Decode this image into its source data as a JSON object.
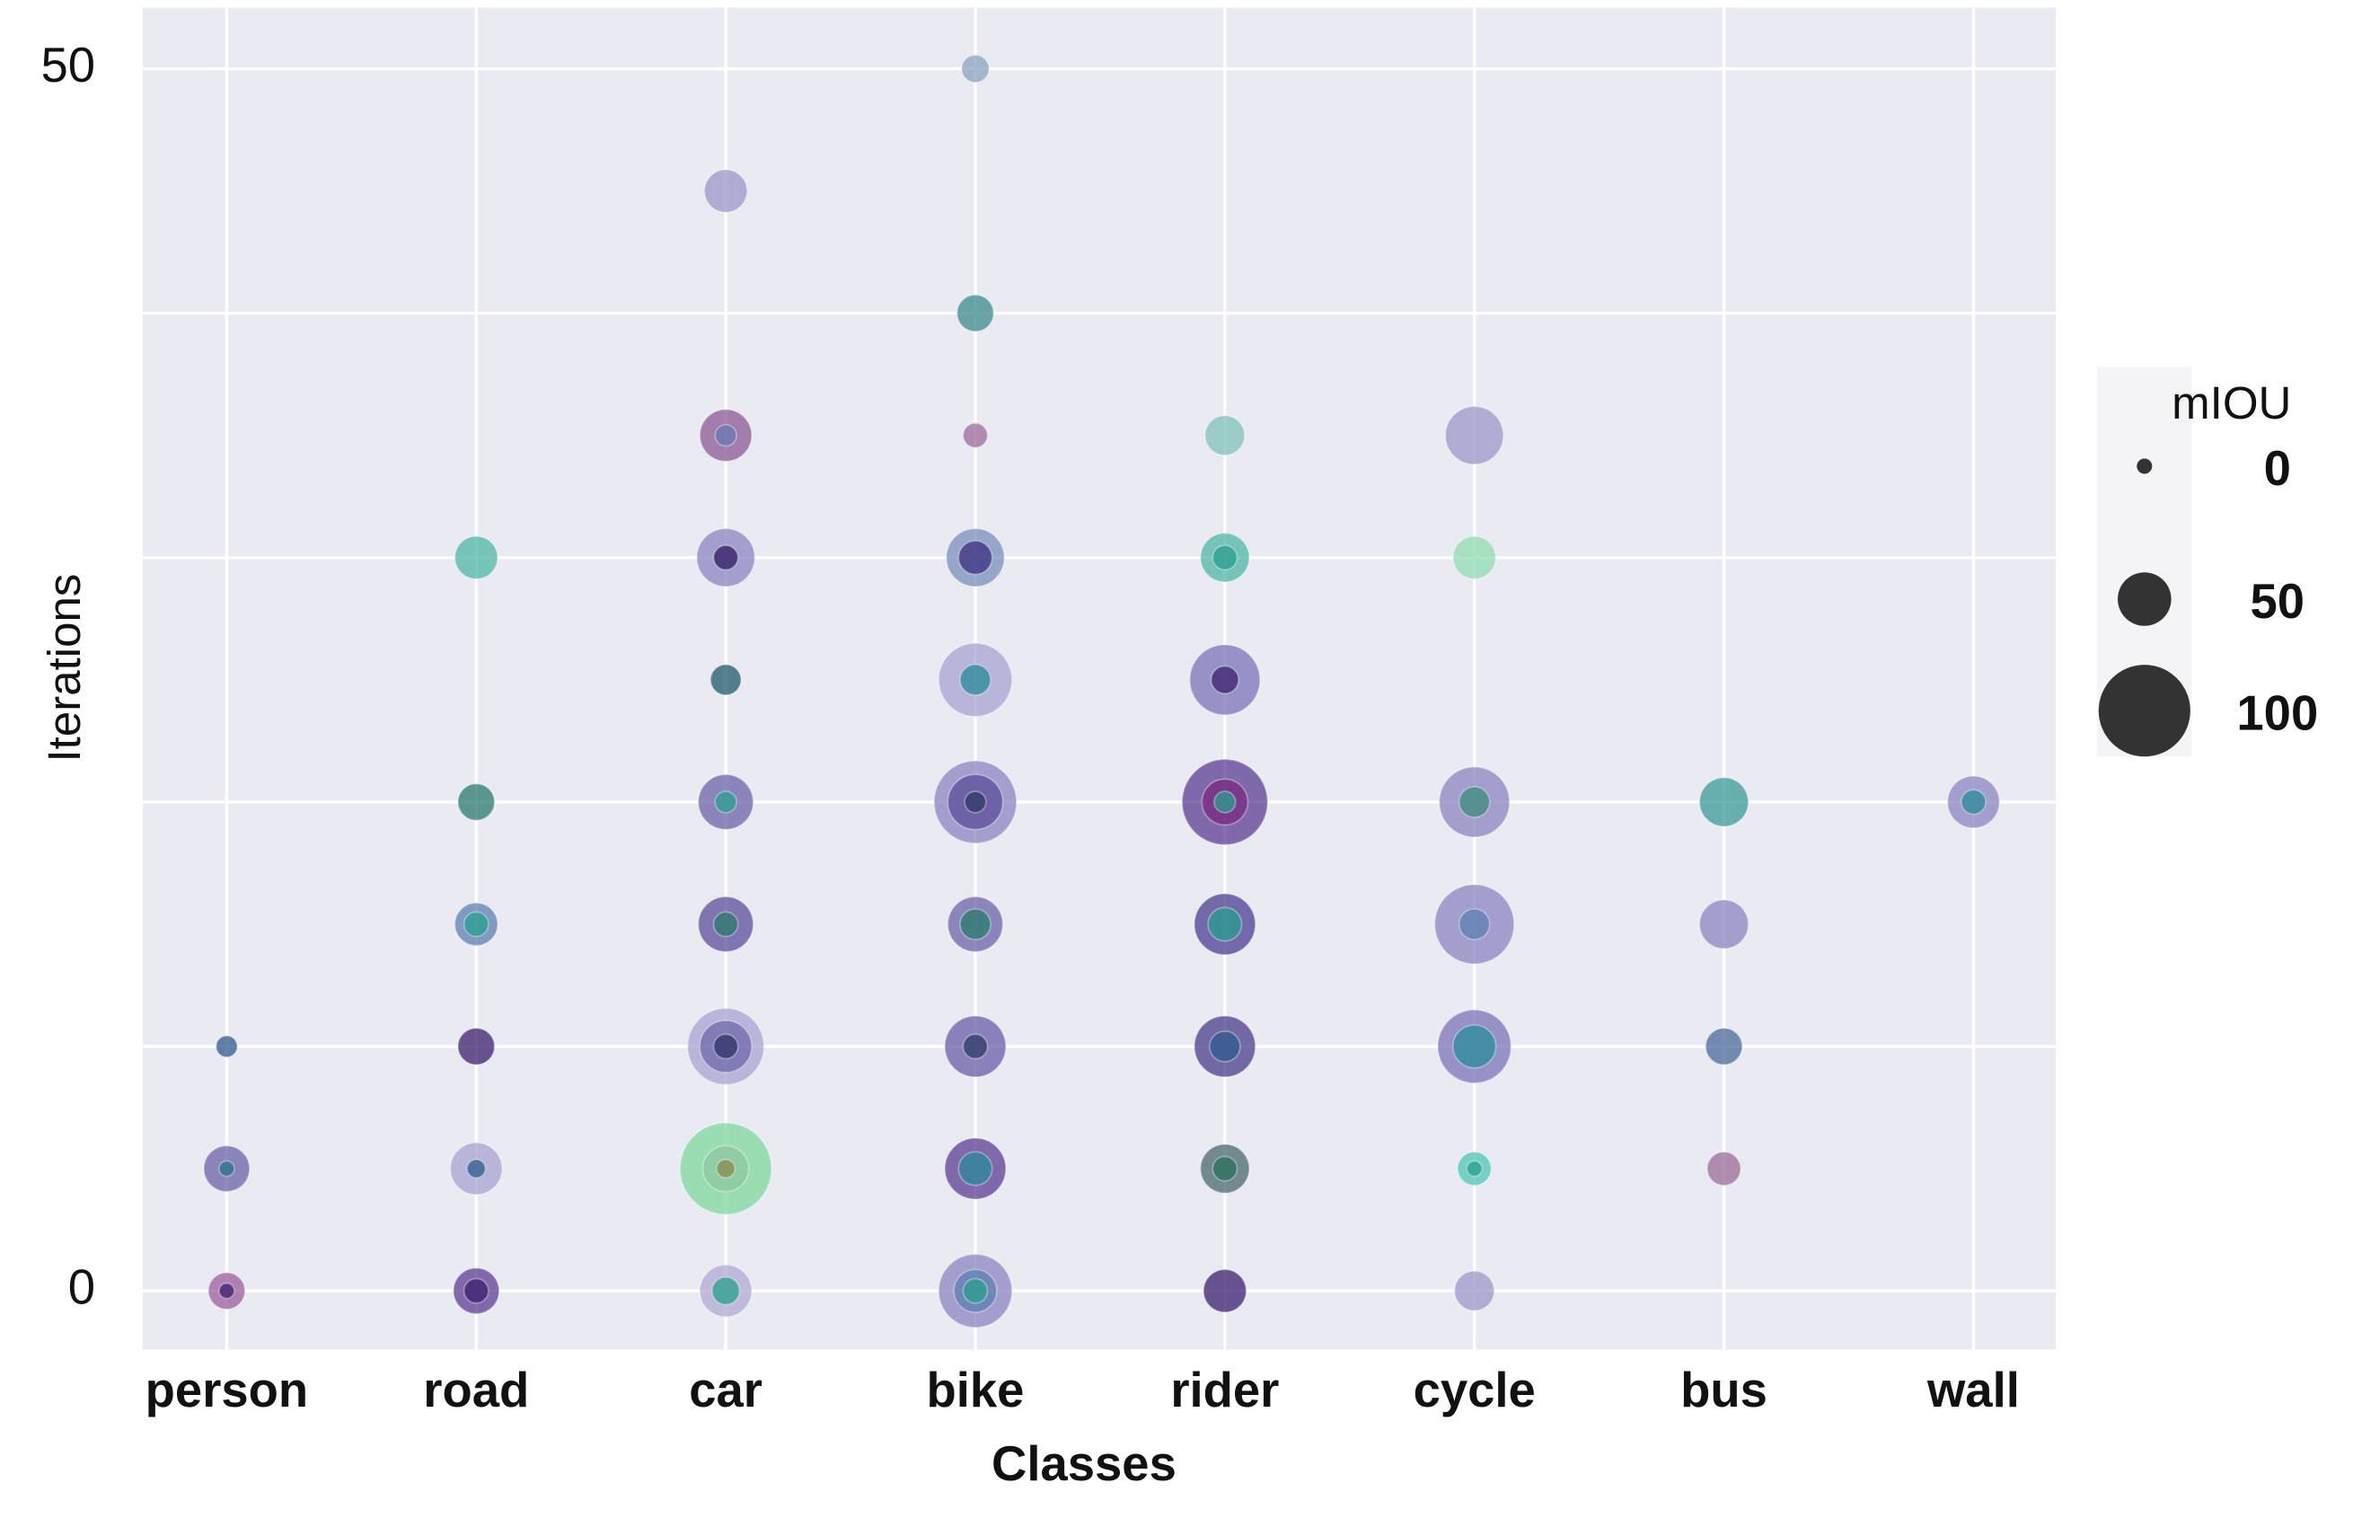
{
  "chart_data": {
    "type": "bubble",
    "x_label": "Classes",
    "y_label": "Iterations",
    "categories": [
      "person",
      "road",
      "car",
      "bike",
      "rider",
      "cycle",
      "bus",
      "wall"
    ],
    "ylim": [
      -2.4,
      52.5
    ],
    "yticks": [
      0,
      50
    ],
    "ygrid": [
      0,
      10,
      20,
      30,
      40,
      50
    ],
    "grid": true,
    "x": [
      "person",
      "person",
      "person",
      "person",
      "person",
      "road",
      "road",
      "road",
      "road",
      "road",
      "road",
      "road",
      "road",
      "road",
      "car",
      "car",
      "car",
      "car",
      "car",
      "car",
      "car",
      "car",
      "car",
      "car",
      "car",
      "car",
      "car",
      "car",
      "car",
      "car",
      "car",
      "car",
      "bike",
      "bike",
      "bike",
      "bike",
      "bike",
      "bike",
      "bike",
      "bike",
      "bike",
      "bike",
      "bike",
      "bike",
      "bike",
      "bike",
      "bike",
      "bike",
      "bike",
      "bike",
      "bike",
      "rider",
      "rider",
      "rider",
      "rider",
      "rider",
      "rider",
      "rider",
      "rider",
      "rider",
      "rider",
      "rider",
      "rider",
      "rider",
      "rider",
      "rider",
      "cycle",
      "cycle",
      "cycle",
      "cycle",
      "cycle",
      "cycle",
      "cycle",
      "cycle",
      "cycle",
      "cycle",
      "cycle",
      "bus",
      "bus",
      "bus",
      "bus",
      "wall",
      "wall"
    ],
    "y": [
      0,
      0,
      5,
      5,
      10,
      0,
      0,
      5,
      5,
      10,
      15,
      15,
      20,
      30,
      0,
      0,
      5,
      5,
      5,
      10,
      10,
      10,
      15,
      15,
      20,
      20,
      25,
      30,
      30,
      35,
      35,
      45,
      0,
      0,
      0,
      5,
      5,
      10,
      10,
      15,
      15,
      20,
      20,
      20,
      25,
      25,
      30,
      30,
      35,
      40,
      50,
      0,
      5,
      5,
      10,
      10,
      15,
      15,
      20,
      20,
      20,
      25,
      25,
      30,
      30,
      35,
      0,
      5,
      5,
      10,
      10,
      15,
      15,
      20,
      20,
      30,
      35,
      5,
      10,
      15,
      20,
      20,
      20
    ],
    "sizes": [
      28,
      0,
      40,
      0,
      8,
      40,
      12,
      48,
      4,
      28,
      36,
      12,
      28,
      36,
      48,
      16,
      100,
      40,
      4,
      80,
      48,
      12,
      52,
      12,
      52,
      8,
      20,
      56,
      12,
      48,
      8,
      36,
      76,
      36,
      12,
      60,
      24,
      60,
      12,
      52,
      20,
      88,
      52,
      8,
      76,
      20,
      56,
      24,
      12,
      28,
      16,
      36,
      44,
      12,
      60,
      20,
      60,
      24,
      92,
      40,
      8,
      72,
      16,
      44,
      12,
      32,
      32,
      24,
      0,
      76,
      36,
      84,
      20,
      72,
      20,
      36,
      56,
      24,
      28,
      44,
      44,
      48,
      12
    ],
    "colors": [
      "#9b5c9b",
      "#3b1f6e",
      "#6a64a8",
      "#2a6f8a",
      "#2d5a8a",
      "#5c3e93",
      "#3b1f6e",
      "#a7a3d1",
      "#2d5a8a",
      "#3b1f6e",
      "#5e7fb0",
      "#2a9d8f",
      "#2a7a6e",
      "#4fb5a5",
      "#b0a9d3",
      "#2a9d8f",
      "#7fd8a0",
      "#8cc7a0",
      "#8a8a4a",
      "#a7a3d1",
      "#6f6aa8",
      "#2f3266",
      "#5c4e9a",
      "#2a7a6e",
      "#6a64a8",
      "#2a9d8f",
      "#1f5a6a",
      "#8a84c0",
      "#2d1a5e",
      "#8b5a95",
      "#6a7ab0",
      "#9b97c9",
      "#8a84c0",
      "#5e7fb0",
      "#2a9d8f",
      "#5c3e93",
      "#2a8a9a",
      "#6a5ea8",
      "#2f3a66",
      "#6a64a8",
      "#2a7a6e",
      "#8a84c0",
      "#5c4e9a",
      "#2f3a66",
      "#a7a3d1",
      "#2a8a9a",
      "#7a8fbd",
      "#3b2f7e",
      "#9b6a9b",
      "#3b8a8a",
      "#8aa3c0",
      "#3b1f6e",
      "#4a6a6e",
      "#2a6f5e",
      "#4a3e8a",
      "#2d5a8a",
      "#4a3e93",
      "#2a9d8f",
      "#5c3e93",
      "#7a2a7e",
      "#2a9d8f",
      "#7a74b8",
      "#3b1f6e",
      "#4fb5a5",
      "#2a9d8f",
      "#7fc0b8",
      "#9b97c9",
      "#4fc5b5",
      "#2a9d8f",
      "#7a74b8",
      "#2a8a9a",
      "#8a84c0",
      "#5e7fb0",
      "#8a84c0",
      "#3b8a7a",
      "#8fdcb0",
      "#9b97c9",
      "#9b6a9b",
      "#4a6a9a",
      "#8a84c0",
      "#3b9a9a",
      "#8a84c0",
      "#2a8a9a"
    ],
    "size_legend": {
      "title": "mIOU",
      "values": [
        0,
        50,
        100
      ],
      "color": "#333333"
    }
  }
}
